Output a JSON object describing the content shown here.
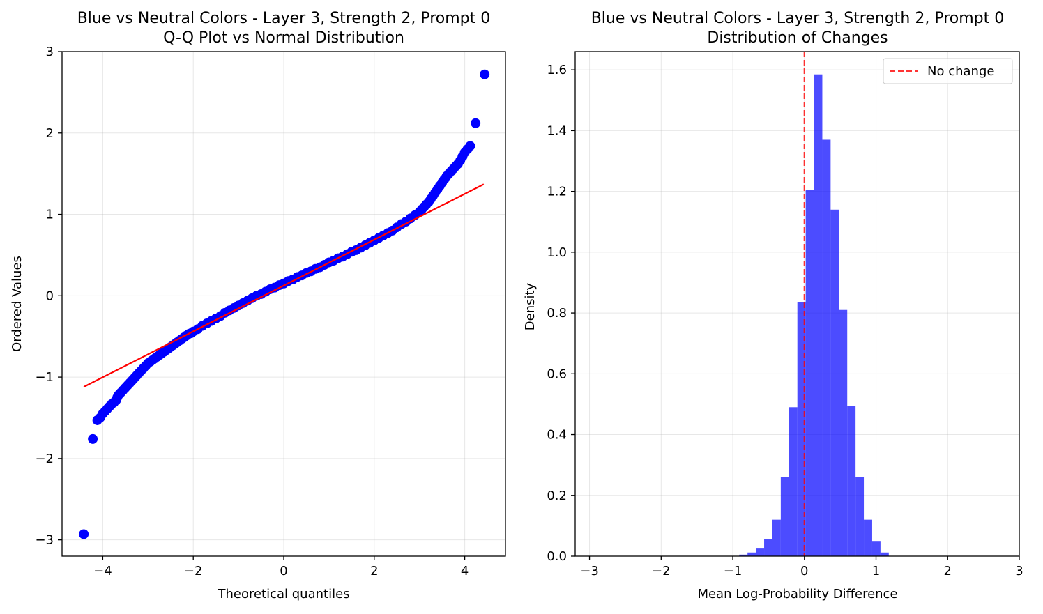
{
  "chart_data": [
    {
      "type": "scatter",
      "title": "Blue vs Neutral Colors - Layer 3, Strength 2, Prompt 0",
      "subtitle": "Q-Q Plot vs Normal Distribution",
      "xlabel": "Theoretical quantiles",
      "ylabel": "Ordered Values",
      "xlim": [
        -4.9,
        4.9
      ],
      "ylim": [
        -3.2,
        3.0
      ],
      "xticks": [
        -4,
        -2,
        0,
        2,
        4
      ],
      "yticks": [
        -3,
        -2,
        -1,
        0,
        1,
        2,
        3
      ],
      "grid": true,
      "colors": {
        "points": "#0000ff",
        "fit_line": "#ff0000"
      },
      "fit_line": {
        "x": [
          -4.42,
          4.42
        ],
        "y": [
          -1.12,
          1.37
        ]
      },
      "points": [
        [
          -4.42,
          -2.93
        ],
        [
          -4.22,
          -1.76
        ],
        [
          -4.12,
          -1.53
        ],
        [
          -4.06,
          -1.5
        ],
        [
          -4.0,
          -1.45
        ],
        [
          -3.95,
          -1.42
        ],
        [
          -3.9,
          -1.39
        ],
        [
          -3.85,
          -1.36
        ],
        [
          -3.8,
          -1.33
        ],
        [
          -3.75,
          -1.31
        ],
        [
          -3.7,
          -1.28
        ],
        [
          -3.68,
          -1.25
        ],
        [
          -3.65,
          -1.22
        ],
        [
          -3.6,
          -1.19
        ],
        [
          -3.55,
          -1.16
        ],
        [
          -3.5,
          -1.13
        ],
        [
          -3.45,
          -1.1
        ],
        [
          -3.4,
          -1.07
        ],
        [
          -3.35,
          -1.04
        ],
        [
          -3.3,
          -1.01
        ],
        [
          -3.25,
          -0.98
        ],
        [
          -3.2,
          -0.95
        ],
        [
          -3.15,
          -0.92
        ],
        [
          -3.1,
          -0.89
        ],
        [
          -3.05,
          -0.86
        ],
        [
          -3.0,
          -0.83
        ],
        [
          -2.95,
          -0.81
        ],
        [
          -2.9,
          -0.79
        ],
        [
          -2.85,
          -0.77
        ],
        [
          -2.8,
          -0.75
        ],
        [
          -2.75,
          -0.73
        ],
        [
          -2.7,
          -0.71
        ],
        [
          -2.65,
          -0.69
        ],
        [
          -2.6,
          -0.67
        ],
        [
          -2.55,
          -0.65
        ],
        [
          -2.5,
          -0.63
        ],
        [
          -2.45,
          -0.61
        ],
        [
          -2.4,
          -0.59
        ],
        [
          -2.35,
          -0.57
        ],
        [
          -2.3,
          -0.55
        ],
        [
          -2.25,
          -0.53
        ],
        [
          -2.2,
          -0.51
        ],
        [
          -2.15,
          -0.49
        ],
        [
          -2.1,
          -0.47
        ],
        [
          -2.05,
          -0.46
        ],
        [
          -2.0,
          -0.44
        ],
        [
          -1.9,
          -0.41
        ],
        [
          -1.8,
          -0.37
        ],
        [
          -1.7,
          -0.34
        ],
        [
          -1.6,
          -0.31
        ],
        [
          -1.5,
          -0.28
        ],
        [
          -1.4,
          -0.25
        ],
        [
          -1.3,
          -0.21
        ],
        [
          -1.2,
          -0.18
        ],
        [
          -1.1,
          -0.15
        ],
        [
          -1.0,
          -0.12
        ],
        [
          -0.9,
          -0.09
        ],
        [
          -0.8,
          -0.06
        ],
        [
          -0.7,
          -0.03
        ],
        [
          -0.6,
          0.0
        ],
        [
          -0.5,
          0.02
        ],
        [
          -0.4,
          0.05
        ],
        [
          -0.3,
          0.08
        ],
        [
          -0.2,
          0.1
        ],
        [
          -0.1,
          0.13
        ],
        [
          0.0,
          0.15
        ],
        [
          0.1,
          0.18
        ],
        [
          0.2,
          0.2
        ],
        [
          0.3,
          0.23
        ],
        [
          0.4,
          0.25
        ],
        [
          0.5,
          0.28
        ],
        [
          0.6,
          0.3
        ],
        [
          0.7,
          0.33
        ],
        [
          0.8,
          0.35
        ],
        [
          0.9,
          0.38
        ],
        [
          1.0,
          0.41
        ],
        [
          1.1,
          0.43
        ],
        [
          1.2,
          0.46
        ],
        [
          1.3,
          0.48
        ],
        [
          1.4,
          0.51
        ],
        [
          1.5,
          0.54
        ],
        [
          1.6,
          0.56
        ],
        [
          1.7,
          0.59
        ],
        [
          1.8,
          0.62
        ],
        [
          1.9,
          0.65
        ],
        [
          2.0,
          0.68
        ],
        [
          2.1,
          0.71
        ],
        [
          2.2,
          0.74
        ],
        [
          2.3,
          0.77
        ],
        [
          2.4,
          0.8
        ],
        [
          2.5,
          0.84
        ],
        [
          2.6,
          0.88
        ],
        [
          2.7,
          0.91
        ],
        [
          2.8,
          0.95
        ],
        [
          2.9,
          0.99
        ],
        [
          3.0,
          1.03
        ],
        [
          3.05,
          1.06
        ],
        [
          3.1,
          1.09
        ],
        [
          3.15,
          1.12
        ],
        [
          3.2,
          1.15
        ],
        [
          3.25,
          1.19
        ],
        [
          3.3,
          1.23
        ],
        [
          3.35,
          1.27
        ],
        [
          3.4,
          1.31
        ],
        [
          3.45,
          1.35
        ],
        [
          3.5,
          1.39
        ],
        [
          3.55,
          1.43
        ],
        [
          3.6,
          1.47
        ],
        [
          3.65,
          1.5
        ],
        [
          3.7,
          1.53
        ],
        [
          3.75,
          1.56
        ],
        [
          3.8,
          1.59
        ],
        [
          3.85,
          1.62
        ],
        [
          3.9,
          1.66
        ],
        [
          3.95,
          1.71
        ],
        [
          4.0,
          1.76
        ],
        [
          4.06,
          1.8
        ],
        [
          4.12,
          1.84
        ],
        [
          4.24,
          2.12
        ],
        [
          4.44,
          2.72
        ]
      ]
    },
    {
      "type": "bar",
      "title": "Blue vs Neutral Colors - Layer 3, Strength 2, Prompt 0",
      "subtitle": "Distribution of Changes",
      "xlabel": "Mean Log-Probability Difference",
      "ylabel": "Density",
      "xlim": [
        -3.2,
        3.0
      ],
      "ylim": [
        0.0,
        1.66
      ],
      "xticks": [
        -3,
        -2,
        -1,
        0,
        1,
        2,
        3
      ],
      "yticks": [
        0.0,
        0.2,
        0.4,
        0.6,
        0.8,
        1.0,
        1.2,
        1.4,
        1.6
      ],
      "ytick_labels": [
        "0.0",
        "0.2",
        "0.4",
        "0.6",
        "0.8",
        "1.0",
        "1.2",
        "1.4",
        "1.6"
      ],
      "grid": true,
      "legend": {
        "position": "top-right",
        "entries": [
          "No change"
        ]
      },
      "colors": {
        "bars": "#0000ff",
        "bar_opacity": 0.7,
        "reference_line": "#ff0000"
      },
      "reference_line_x": 0,
      "bin_width": 0.116,
      "bins": [
        {
          "left": -0.91,
          "density": 0.005
        },
        {
          "left": -0.794,
          "density": 0.012
        },
        {
          "left": -0.678,
          "density": 0.025
        },
        {
          "left": -0.562,
          "density": 0.055
        },
        {
          "left": -0.446,
          "density": 0.12
        },
        {
          "left": -0.33,
          "density": 0.26
        },
        {
          "left": -0.214,
          "density": 0.49
        },
        {
          "left": -0.098,
          "density": 0.835
        },
        {
          "left": 0.018,
          "density": 1.205
        },
        {
          "left": 0.134,
          "density": 1.585
        },
        {
          "left": 0.25,
          "density": 1.37
        },
        {
          "left": 0.366,
          "density": 1.14
        },
        {
          "left": 0.482,
          "density": 0.81
        },
        {
          "left": 0.598,
          "density": 0.495
        },
        {
          "left": 0.714,
          "density": 0.26
        },
        {
          "left": 0.83,
          "density": 0.12
        },
        {
          "left": 0.946,
          "density": 0.05
        },
        {
          "left": 1.062,
          "density": 0.012
        }
      ]
    }
  ]
}
